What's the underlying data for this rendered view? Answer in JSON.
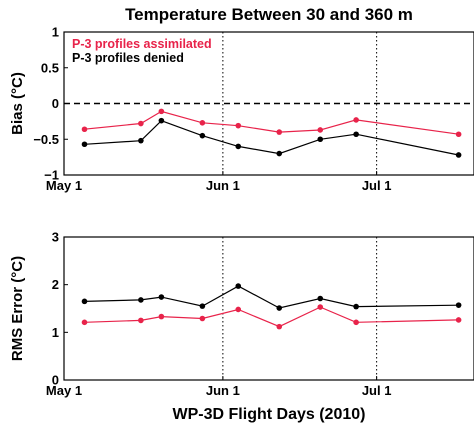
{
  "figure": {
    "title": "Temperature Between 30 and 360 m",
    "xlabel": "WP-3D Flight Days (2010)"
  },
  "colors": {
    "assimilated": "#e8234a",
    "denied": "#000000"
  },
  "chart_data": [
    {
      "type": "line",
      "ylabel": "Bias (°C)",
      "ylim": [
        -1,
        1
      ],
      "yticks": [
        -1,
        -0.5,
        0,
        0.5,
        1
      ],
      "ytick_labels": [
        "−1",
        "−0.5",
        "0",
        "0.5",
        "1"
      ],
      "xlim": [
        "2010-05-01",
        "2010-07-20"
      ],
      "xticks": [
        "2010-05-01",
        "2010-06-01",
        "2010-07-01"
      ],
      "xtick_labels": [
        "May 1",
        "Jun 1",
        "Jul 1"
      ],
      "vertical_dotted_lines": [
        "2010-06-01",
        "2010-07-01"
      ],
      "zero_line": "dashed",
      "legend": "top-left",
      "x": [
        "2010-05-05",
        "2010-05-16",
        "2010-05-20",
        "2010-05-28",
        "2010-06-04",
        "2010-06-12",
        "2010-06-20",
        "2010-06-27",
        "2010-07-17"
      ],
      "series": [
        {
          "name": "P-3 profiles assimilated",
          "color_key": "assimilated",
          "values": [
            -0.36,
            -0.28,
            -0.11,
            -0.27,
            -0.31,
            -0.4,
            -0.37,
            -0.23,
            -0.43
          ]
        },
        {
          "name": "P-3 profiles denied",
          "color_key": "denied",
          "values": [
            -0.57,
            -0.52,
            -0.24,
            -0.45,
            -0.6,
            -0.7,
            -0.5,
            -0.43,
            -0.72
          ]
        }
      ]
    },
    {
      "type": "line",
      "ylabel": "RMS Error (°C)",
      "ylim": [
        0,
        3
      ],
      "yticks": [
        0,
        1,
        2,
        3
      ],
      "ytick_labels": [
        "0",
        "1",
        "2",
        "3"
      ],
      "xlim": [
        "2010-05-01",
        "2010-07-20"
      ],
      "xticks": [
        "2010-05-01",
        "2010-06-01",
        "2010-07-01"
      ],
      "xtick_labels": [
        "May 1",
        "Jun 1",
        "Jul 1"
      ],
      "vertical_dotted_lines": [
        "2010-06-01",
        "2010-07-01"
      ],
      "x": [
        "2010-05-05",
        "2010-05-16",
        "2010-05-20",
        "2010-05-28",
        "2010-06-04",
        "2010-06-12",
        "2010-06-20",
        "2010-06-27",
        "2010-07-17"
      ],
      "series": [
        {
          "name": "P-3 profiles assimilated",
          "color_key": "assimilated",
          "values": [
            1.21,
            1.25,
            1.33,
            1.29,
            1.48,
            1.12,
            1.53,
            1.21,
            1.26
          ]
        },
        {
          "name": "P-3 profiles denied",
          "color_key": "denied",
          "values": [
            1.65,
            1.68,
            1.74,
            1.55,
            1.97,
            1.51,
            1.71,
            1.54,
            1.57
          ]
        }
      ]
    }
  ]
}
